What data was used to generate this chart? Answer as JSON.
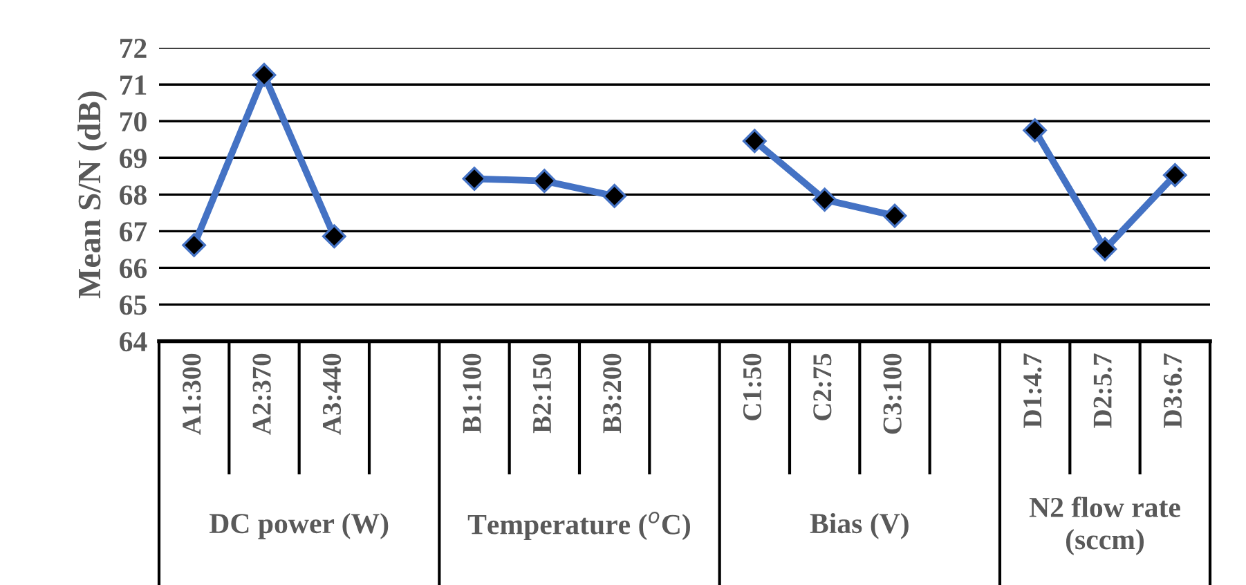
{
  "chart_data": {
    "type": "line",
    "ylabel": "Mean S/N (dB)",
    "categories": [
      "A1:300",
      "A2:370",
      "A3:440",
      null,
      "B1:100",
      "B2:150",
      "B3:200",
      null,
      "C1:50",
      "C2:75",
      "C3:100",
      null,
      "D1:4.7",
      "D2:5.7",
      "D3:6.7"
    ],
    "series": [
      {
        "color": "#4472c4",
        "values": [
          66.62,
          71.26,
          66.86,
          null,
          68.43,
          68.37,
          67.96,
          null,
          69.46,
          67.86,
          67.42,
          null,
          69.75,
          66.51,
          68.53
        ]
      }
    ],
    "annotations": [
      "DC power (W)",
      "Temperature ($^{o}$C)",
      "Bias (V)",
      "N2 flow rate\n(sccm)"
    ],
    "ylim": [
      64,
      72
    ],
    "yticks": [
      64,
      65,
      66,
      67,
      68,
      69,
      70,
      71,
      72
    ],
    "grid": "y",
    "marker": "diamond",
    "line_style": "solid",
    "legend": false
  }
}
